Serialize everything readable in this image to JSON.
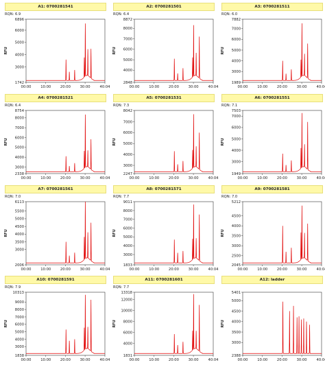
{
  "chart_data": [
    {
      "type": "line",
      "title": "A1: 0700281541",
      "rqn": "RQN: 6.9",
      "ylabel": "RFU",
      "ylim": [
        1742,
        6896
      ],
      "yticks": [
        1742,
        3000,
        4000,
        5000,
        6000,
        6896
      ],
      "xticks": [
        "00:00",
        "10:00",
        "20:00",
        "30:00",
        "40:04"
      ],
      "xlim_min": [
        0,
        40.07
      ],
      "line_color": "#e00000",
      "peaks": [
        [
          20.3,
          3600
        ],
        [
          22.0,
          2600
        ],
        [
          24.7,
          2750
        ],
        [
          29.6,
          3500
        ],
        [
          30.1,
          6200
        ],
        [
          31.4,
          4050
        ],
        [
          33.0,
          4300
        ]
      ]
    },
    {
      "type": "line",
      "title": "A2: 0700281501",
      "rqn": "RQN: 6.4",
      "ylabel": "RFU",
      "ylim": [
        2848,
        8872
      ],
      "yticks": [
        2848,
        4000,
        5000,
        6000,
        7000,
        8000,
        8872
      ],
      "xticks": [
        "00:00",
        "10:00",
        "20:00",
        "30:00",
        "40:04"
      ],
      "xlim_min": [
        0,
        40.07
      ],
      "line_color": "#e00000",
      "peaks": [
        [
          20.3,
          5100
        ],
        [
          22.0,
          3700
        ],
        [
          24.7,
          4200
        ],
        [
          29.6,
          4900
        ],
        [
          30.1,
          7900
        ],
        [
          31.4,
          5200
        ],
        [
          33.0,
          7000
        ]
      ]
    },
    {
      "type": "line",
      "title": "A3: 0700281511",
      "rqn": "RQN: 6.0",
      "ylabel": "RFU",
      "ylim": [
        1989,
        7882
      ],
      "yticks": [
        1989,
        3000,
        4000,
        5000,
        6000,
        7000,
        7882
      ],
      "xticks": [
        "00:00",
        "10:00",
        "20:00",
        "30:00",
        "40:04"
      ],
      "xlim_min": [
        0,
        40.07
      ],
      "line_color": "#e00000",
      "peaks": [
        [
          20.3,
          4000
        ],
        [
          22.0,
          2800
        ],
        [
          24.7,
          3200
        ],
        [
          29.6,
          3800
        ],
        [
          30.1,
          7100
        ],
        [
          31.4,
          4200
        ],
        [
          33.0,
          5400
        ]
      ]
    },
    {
      "type": "line",
      "title": "A4: 0700281521",
      "rqn": "RQN: 6.4",
      "ylabel": "RFU",
      "ylim": [
        2338,
        8754
      ],
      "yticks": [
        2338,
        3000,
        4000,
        5000,
        6000,
        7000,
        8000,
        8754
      ],
      "xticks": [
        "00:00",
        "10:00",
        "20:00",
        "30:00",
        "40:04"
      ],
      "xlim_min": [
        0,
        40.07
      ],
      "line_color": "#e00000",
      "peaks": [
        [
          20.3,
          4100
        ],
        [
          22.0,
          3100
        ],
        [
          24.7,
          3400
        ],
        [
          29.6,
          4300
        ],
        [
          30.1,
          7900
        ],
        [
          31.4,
          4200
        ],
        [
          33.0,
          5600
        ]
      ]
    },
    {
      "type": "line",
      "title": "A5: 0700281531",
      "rqn": "RQN: 7.3",
      "ylabel": "RFU",
      "ylim": [
        2247,
        8042
      ],
      "yticks": [
        2247,
        3000,
        4000,
        5000,
        6000,
        7000,
        8042
      ],
      "xticks": [
        "00:00",
        "10:00",
        "20:00",
        "30:00",
        "40:04"
      ],
      "xlim_min": [
        0,
        40.07
      ],
      "line_color": "#e00000",
      "peaks": [
        [
          20.3,
          4300
        ],
        [
          22.0,
          3100
        ],
        [
          24.7,
          3400
        ],
        [
          29.6,
          4100
        ],
        [
          30.1,
          7300
        ],
        [
          31.4,
          4300
        ],
        [
          33.0,
          5800
        ]
      ]
    },
    {
      "type": "line",
      "title": "A6: 0700281551",
      "rqn": "RQN: 7.1",
      "ylabel": "RFU",
      "ylim": [
        1949,
        7503
      ],
      "yticks": [
        1949,
        3000,
        4000,
        5000,
        6000,
        7000,
        7503
      ],
      "xticks": [
        "00:00",
        "10:00",
        "20:00",
        "30:00",
        "40:04"
      ],
      "xlim_min": [
        0,
        40.07
      ],
      "line_color": "#e00000",
      "peaks": [
        [
          20.3,
          3700
        ],
        [
          22.0,
          2700
        ],
        [
          24.7,
          3100
        ],
        [
          29.6,
          3900
        ],
        [
          30.1,
          6900
        ],
        [
          31.4,
          4100
        ],
        [
          33.0,
          6300
        ]
      ]
    },
    {
      "type": "line",
      "title": "A7: 0700281561",
      "rqn": "RQN: 7.0",
      "ylabel": "RFU",
      "ylim": [
        2006,
        6113
      ],
      "yticks": [
        2006,
        3000,
        3500,
        4000,
        4500,
        5000,
        5500,
        6113
      ],
      "xticks": [
        "00:00",
        "10:00",
        "20:00",
        "30:00",
        "40:04"
      ],
      "xlim_min": [
        0,
        40.07
      ],
      "line_color": "#e00000",
      "peaks": [
        [
          20.3,
          3500
        ],
        [
          22.0,
          2600
        ],
        [
          24.7,
          2800
        ],
        [
          29.6,
          3600
        ],
        [
          30.1,
          5900
        ],
        [
          31.4,
          3800
        ],
        [
          33.0,
          4600
        ]
      ]
    },
    {
      "type": "line",
      "title": "A8: 0700281571",
      "rqn": "RQN: 7.7",
      "ylabel": "RFU",
      "ylim": [
        1833,
        9011
      ],
      "yticks": [
        1833,
        3000,
        4000,
        5000,
        6000,
        7000,
        8000,
        9011
      ],
      "xticks": [
        "00:00",
        "10:00",
        "20:00",
        "30:00",
        "40:04"
      ],
      "xlim_min": [
        0,
        40.07
      ],
      "line_color": "#e00000",
      "peaks": [
        [
          20.3,
          4700
        ],
        [
          22.0,
          3200
        ],
        [
          24.7,
          3400
        ],
        [
          29.6,
          4400
        ],
        [
          30.1,
          8200
        ],
        [
          31.4,
          4300
        ],
        [
          33.0,
          7300
        ]
      ]
    },
    {
      "type": "line",
      "title": "A9: 0700281581",
      "rqn": "RQN: 7.0",
      "ylabel": "RFU",
      "ylim": [
        2045,
        5212
      ],
      "yticks": [
        2045,
        2500,
        3000,
        3500,
        4000,
        4500,
        5212
      ],
      "xticks": [
        "00:00",
        "10:00",
        "20:00",
        "30:00",
        "40:04"
      ],
      "xlim_min": [
        0,
        40.07
      ],
      "line_color": "#e00000",
      "peaks": [
        [
          20.3,
          4000
        ],
        [
          22.0,
          2700
        ],
        [
          24.7,
          2900
        ],
        [
          29.6,
          3500
        ],
        [
          30.1,
          4800
        ],
        [
          31.4,
          3400
        ],
        [
          33.0,
          4000
        ]
      ]
    },
    {
      "type": "line",
      "title": "A10: 0700281591",
      "rqn": "RQN: 7.9",
      "ylabel": "RFU",
      "ylim": [
        1838,
        10313
      ],
      "yticks": [
        1838,
        3000,
        4000,
        5000,
        6000,
        7000,
        8000,
        9000,
        10313
      ],
      "xticks": [
        "00:00",
        "10:00",
        "20:00",
        "30:00",
        "40:04"
      ],
      "xlim_min": [
        0,
        40.07
      ],
      "line_color": "#e00000",
      "peaks": [
        [
          20.3,
          5300
        ],
        [
          22.0,
          3800
        ],
        [
          24.7,
          4000
        ],
        [
          29.6,
          5100
        ],
        [
          30.1,
          9400
        ],
        [
          31.4,
          5000
        ],
        [
          33.0,
          9000
        ]
      ]
    },
    {
      "type": "line",
      "title": "A11: 0700281601",
      "rqn": "RQN: 7.7",
      "ylabel": "RFU",
      "ylim": [
        1831,
        13318
      ],
      "yticks": [
        1831,
        4000,
        6000,
        8000,
        10000,
        12000,
        13318
      ],
      "xticks": [
        "00:00",
        "10:00",
        "20:00",
        "30:00",
        "40:04"
      ],
      "xlim_min": [
        0,
        40.07
      ],
      "line_color": "#e00000",
      "peaks": [
        [
          20.3,
          5700
        ],
        [
          22.0,
          3700
        ],
        [
          24.7,
          4300
        ],
        [
          29.6,
          5700
        ],
        [
          30.1,
          12200
        ],
        [
          31.4,
          5400
        ],
        [
          33.0,
          10600
        ]
      ]
    },
    {
      "type": "line",
      "title": "A12: ladder",
      "rqn": "",
      "ylabel": "RFU",
      "ylim": [
        2388,
        5401
      ],
      "yticks": [
        2388,
        3000,
        3500,
        4000,
        4500,
        5000,
        5401
      ],
      "xticks": [
        "00:00",
        "10:00",
        "20:00",
        "30:00",
        "40:04"
      ],
      "xlim_min": [
        0,
        40.07
      ],
      "line_color": "#e00000",
      "peaks": [
        [
          20.4,
          4950
        ],
        [
          23.8,
          4500
        ],
        [
          25.8,
          4750
        ],
        [
          27.6,
          4200
        ],
        [
          28.6,
          4250
        ],
        [
          29.8,
          4100
        ],
        [
          31.0,
          4150
        ],
        [
          32.4,
          4000
        ],
        [
          34.0,
          3850
        ]
      ]
    }
  ]
}
